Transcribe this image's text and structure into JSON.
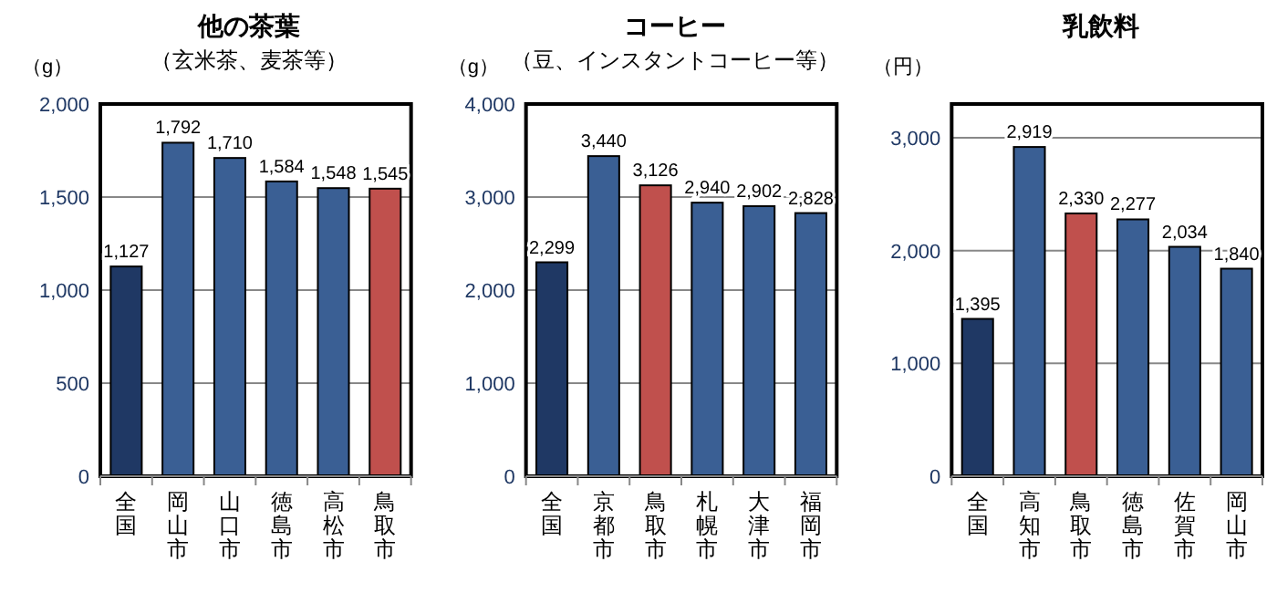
{
  "chart_data": [
    {
      "type": "bar",
      "title": "他の茶葉",
      "subtitle": "（玄米茶、麦茶等）",
      "ylabel": "（g）",
      "categories": [
        "全国",
        "岡山市",
        "山口市",
        "徳島市",
        "高松市",
        "鳥取市"
      ],
      "values": [
        1127,
        1792,
        1710,
        1584,
        1548,
        1545
      ],
      "colors": [
        "#1f3864",
        "#3a5f94",
        "#3a5f94",
        "#3a5f94",
        "#3a5f94",
        "#c0504d"
      ],
      "ylim": [
        0,
        2000
      ],
      "yticks": [
        {
          "value": 0,
          "label": "0"
        },
        {
          "value": 500,
          "label": "500"
        },
        {
          "value": 1000,
          "label": "1,000"
        },
        {
          "value": 1500,
          "label": "1,500"
        },
        {
          "value": 2000,
          "label": "2,000"
        }
      ],
      "grid": "y",
      "data_labels": true,
      "value_labels": [
        "1,127",
        "1,792",
        "1,710",
        "1,584",
        "1,548",
        "1,545"
      ]
    },
    {
      "type": "bar",
      "title": "コーヒー",
      "subtitle": "（豆、インスタントコーヒー等）",
      "ylabel": "（g）",
      "categories": [
        "全国",
        "京都市",
        "鳥取市",
        "札幌市",
        "大津市",
        "福岡市"
      ],
      "values": [
        2299,
        3440,
        3126,
        2940,
        2902,
        2828
      ],
      "colors": [
        "#1f3864",
        "#3a5f94",
        "#c0504d",
        "#3a5f94",
        "#3a5f94",
        "#3a5f94"
      ],
      "ylim": [
        0,
        4000
      ],
      "yticks": [
        {
          "value": 0,
          "label": "0"
        },
        {
          "value": 1000,
          "label": "1,000"
        },
        {
          "value": 2000,
          "label": "2,000"
        },
        {
          "value": 3000,
          "label": "3,000"
        },
        {
          "value": 4000,
          "label": "4,000"
        }
      ],
      "grid": "y",
      "data_labels": true,
      "value_labels": [
        "2,299",
        "3,440",
        "3,126",
        "2,940",
        "2,902",
        "2,828"
      ]
    },
    {
      "type": "bar",
      "title": "乳飲料",
      "ylabel": "（円）",
      "categories": [
        "全国",
        "高知市",
        "鳥取市",
        "徳島市",
        "佐賀市",
        "岡山市"
      ],
      "values": [
        1395,
        2919,
        2330,
        2277,
        2034,
        1840
      ],
      "colors": [
        "#1f3864",
        "#3a5f94",
        "#c0504d",
        "#3a5f94",
        "#3a5f94",
        "#3a5f94"
      ],
      "ylim": [
        0,
        3300
      ],
      "yticks": [
        {
          "value": 0,
          "label": "0"
        },
        {
          "value": 1000,
          "label": "1,000"
        },
        {
          "value": 2000,
          "label": "2,000"
        },
        {
          "value": 3000,
          "label": "3,000"
        }
      ],
      "grid": "y",
      "data_labels": true,
      "value_labels": [
        "1,395",
        "2,919",
        "2,330",
        "2,277",
        "2,034",
        "1,840"
      ]
    }
  ]
}
